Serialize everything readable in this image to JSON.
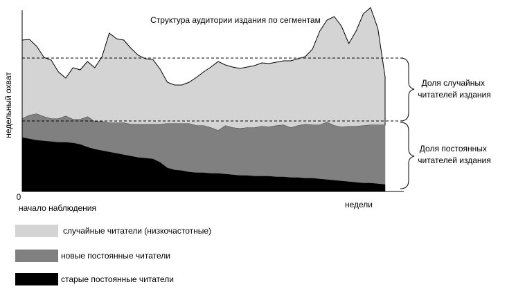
{
  "chart_data": {
    "type": "area",
    "stacked": true,
    "title": "Структура аудитории издания по сегментам",
    "ylabel": "недельный охват",
    "xlabel": "недели",
    "x_start_label": "начало наблюдения",
    "y_origin_label": "0",
    "grid": false,
    "legend_position": "bottom-left",
    "x": [
      0,
      2,
      4,
      6,
      8,
      10,
      12,
      14,
      16,
      18,
      20,
      22,
      24,
      26,
      28,
      30,
      32,
      34,
      36,
      38,
      40,
      42,
      44,
      46,
      48,
      50,
      52,
      54,
      56,
      58,
      60,
      62,
      64,
      66,
      68,
      70,
      72,
      74,
      76,
      78,
      80,
      82,
      84,
      86,
      88,
      90,
      92,
      94,
      96,
      98,
      100
    ],
    "series": [
      {
        "name": "старые постоянные читатели",
        "color": "#000000",
        "values": [
          78,
          76,
          74,
          73,
          72,
          71,
          71,
          70,
          68,
          64,
          61,
          59,
          57,
          55,
          53,
          51,
          49,
          48,
          47,
          42,
          34,
          31,
          30,
          28,
          27,
          27,
          26,
          26,
          25,
          24,
          23,
          23,
          22,
          22,
          22,
          21,
          21,
          20,
          20,
          19,
          19,
          18,
          17,
          16,
          15,
          14,
          13,
          12,
          12,
          11,
          10
        ]
      },
      {
        "name": "новые постоянные читатели",
        "color": "#808080",
        "values": [
          27,
          34,
          38,
          35,
          33,
          34,
          38,
          34,
          36,
          44,
          40,
          42,
          42,
          44,
          46,
          46,
          48,
          49,
          50,
          55,
          64,
          67,
          68,
          70,
          68,
          68,
          66,
          62,
          70,
          68,
          68,
          69,
          70,
          72,
          71,
          74,
          75,
          72,
          75,
          78,
          77,
          78,
          83,
          79,
          78,
          80,
          81,
          83,
          84,
          85,
          86
        ]
      },
      {
        "name": "случайные читатели (низкочастотные)",
        "color": "#d4d4d4",
        "values": [
          114,
          110,
          98,
          86,
          85,
          68,
          55,
          75,
          72,
          80,
          78,
          94,
          130,
          122,
          120,
          110,
          100,
          95,
          94,
          80,
          60,
          56,
          56,
          60,
          70,
          78,
          88,
          100,
          88,
          88,
          87,
          88,
          90,
          92,
          92,
          92,
          93,
          97,
          97,
          98,
          110,
          136,
          148,
          158,
          146,
          120,
          138,
          162,
          170,
          140,
          70
        ]
      }
    ],
    "annotations": [
      {
        "label": "Доля случайных читателей издания",
        "applies_to": "случайные читатели (низкочастотные)"
      },
      {
        "label": "Доля постоянных читателей издания",
        "applies_to": "старые постоянные читатели + новые постоянные читатели"
      }
    ]
  }
}
